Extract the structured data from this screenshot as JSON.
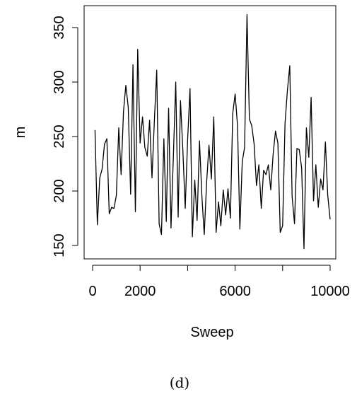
{
  "chart_data": {
    "type": "line",
    "title": "",
    "xlabel": "Sweep",
    "ylabel": "m",
    "xlim": [
      0,
      10000
    ],
    "ylim": [
      142,
      366
    ],
    "xticks": [
      2000,
      6000,
      10000
    ],
    "xtick_labels": [
      "0",
      "2000",
      "6000",
      "10000"
    ],
    "xtick_label_values": [
      0,
      2000,
      6000,
      10000
    ],
    "xtick_marks": [
      0,
      2000,
      4000,
      6000,
      8000,
      10000
    ],
    "yticks": [
      150,
      200,
      250,
      300,
      350
    ],
    "ytick_labels": [
      "150",
      "200",
      "250",
      "300",
      "350"
    ],
    "grid": false,
    "series": [
      {
        "x": [
          100,
          200,
          300,
          400,
          500,
          600,
          700,
          800,
          900,
          1000,
          1100,
          1200,
          1300,
          1400,
          1500,
          1600,
          1700,
          1800,
          1900,
          2000,
          2100,
          2200,
          2300,
          2400,
          2500,
          2600,
          2700,
          2800,
          2900,
          3000,
          3100,
          3200,
          3300,
          3400,
          3500,
          3600,
          3700,
          3800,
          3900,
          4000,
          4100,
          4200,
          4300,
          4400,
          4500,
          4600,
          4700,
          4800,
          4900,
          5000,
          5100,
          5200,
          5300,
          5400,
          5500,
          5600,
          5700,
          5800,
          5900,
          6000,
          6100,
          6200,
          6300,
          6400,
          6500,
          6600,
          6700,
          6800,
          6900,
          7000,
          7100,
          7200,
          7300,
          7400,
          7500,
          7600,
          7700,
          7800,
          7900,
          8000,
          8100,
          8200,
          8300,
          8400,
          8500,
          8600,
          8700,
          8800,
          8900,
          9000,
          9100,
          9200,
          9300,
          9400,
          9500,
          9600,
          9700,
          9800,
          9900,
          10000
        ],
        "values": [
          256,
          169,
          212,
          220,
          243,
          248,
          179,
          185,
          184,
          196,
          258,
          215,
          273,
          297,
          277,
          197,
          316,
          181,
          330,
          244,
          268,
          240,
          232,
          265,
          212,
          265,
          311,
          170,
          160,
          248,
          172,
          276,
          166,
          231,
          300,
          176,
          283,
          237,
          184,
          247,
          294,
          158,
          210,
          173,
          246,
          195,
          160,
          208,
          242,
          211,
          268,
          162,
          190,
          168,
          201,
          178,
          202,
          175,
          271,
          289,
          260,
          165,
          227,
          240,
          362,
          266,
          260,
          243,
          205,
          224,
          184,
          219,
          215,
          224,
          201,
          234,
          255,
          244,
          162,
          168,
          262,
          292,
          315,
          195,
          170,
          239,
          238,
          221,
          147,
          258,
          231,
          286,
          191,
          224,
          185,
          211,
          201,
          245,
          196,
          174
        ]
      }
    ]
  },
  "caption": "(d)"
}
